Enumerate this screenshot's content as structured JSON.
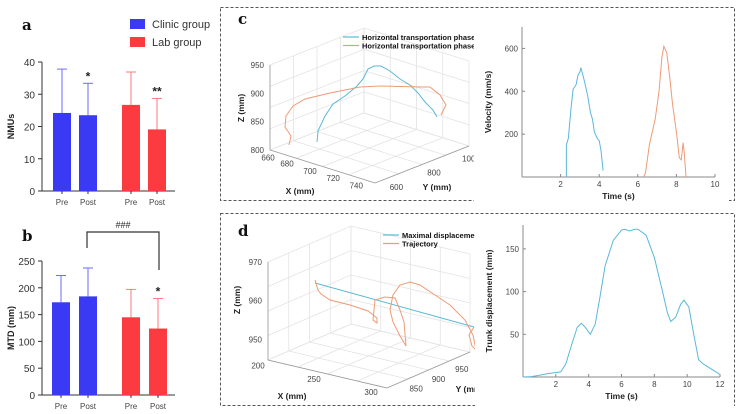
{
  "colors": {
    "clinic": "#3a3af5",
    "lab": "#fb3b3f",
    "cyan": "#5ab8d8",
    "orange": "#ef9a74"
  },
  "panels": {
    "a": "a",
    "b": "b",
    "c": "c",
    "d": "d"
  },
  "legend": {
    "clinic": "Clinic group",
    "lab": "Lab group"
  },
  "chart_data": [
    {
      "id": "a",
      "type": "bar",
      "ylabel": "NMUs",
      "ylim": [
        0,
        40
      ],
      "yticks": [
        "0",
        "10",
        "20",
        "30",
        "40"
      ],
      "categories": [
        "Pre",
        "Post",
        "Pre",
        "Post"
      ],
      "groups": [
        "Clinic group",
        "Clinic group",
        "Lab group",
        "Lab group"
      ],
      "values": [
        24.2,
        23.5,
        26.7,
        19.1
      ],
      "error_upper": [
        37.8,
        33.4,
        36.9,
        28.7
      ],
      "annotations": [
        "",
        "*",
        "",
        "**"
      ]
    },
    {
      "id": "b",
      "type": "bar",
      "ylabel": "MTD (mm)",
      "ylim": [
        0,
        250
      ],
      "yticks": [
        "0",
        "50",
        "100",
        "150",
        "200",
        "250"
      ],
      "categories": [
        "Pre",
        "Post",
        "Pre",
        "Post"
      ],
      "groups": [
        "Clinic group",
        "Clinic group",
        "Lab group",
        "Lab group"
      ],
      "values": [
        173,
        184,
        145,
        124
      ],
      "error_upper": [
        223,
        237,
        197,
        180
      ],
      "annotations": [
        "",
        "",
        "",
        "*"
      ],
      "bracket_label": "###"
    },
    {
      "id": "c",
      "type": "line",
      "plot3d": {
        "xlabel": "X (mm)",
        "ylabel": "Y (mm)",
        "zlabel": "Z (mm)",
        "xticks": [
          "660",
          "680",
          "700",
          "720",
          "740"
        ],
        "yticks": [
          "600",
          "800",
          "1000"
        ],
        "zticks": [
          "950",
          "900",
          "850",
          "800"
        ],
        "legend": [
          "Horizontal transportation phase I",
          "Horizontal transportation phase II"
        ]
      },
      "velocity": {
        "xlabel": "Time (s)",
        "ylabel": "Velocity (mm/s)",
        "xlim": [
          0,
          10
        ],
        "ylim": [
          0,
          700
        ],
        "xticks": [
          "2",
          "4",
          "6",
          "8",
          "10"
        ],
        "yticks": [
          "200",
          "400",
          "600"
        ],
        "series": [
          {
            "name": "Horizontal transportation phase I",
            "x": [
              2.3,
              2.3,
              2.4,
              2.55,
              2.65,
              2.8,
              2.9,
              3.0,
              3.05,
              3.2,
              3.4,
              3.55,
              3.65,
              3.75,
              3.9,
              4.0,
              4.1,
              4.2
            ],
            "y": [
              0,
              150,
              180,
              330,
              410,
              430,
              475,
              490,
              510,
              460,
              380,
              300,
              270,
              210,
              180,
              170,
              120,
              30
            ]
          },
          {
            "name": "Horizontal transportation phase II",
            "x": [
              6.3,
              6.4,
              6.6,
              6.75,
              6.9,
              7.1,
              7.25,
              7.35,
              7.5,
              7.65,
              7.8,
              8.0,
              8.15,
              8.25,
              8.35,
              8.4,
              8.45,
              8.5
            ],
            "y": [
              0,
              20,
              150,
              210,
              270,
              400,
              560,
              610,
              580,
              470,
              340,
              210,
              90,
              80,
              160,
              120,
              60,
              0
            ]
          }
        ]
      }
    },
    {
      "id": "d",
      "type": "line",
      "plot3d": {
        "xlabel": "X (mm)",
        "ylabel": "Y (mm)",
        "zlabel": "Z (mm)",
        "xticks": [
          "200",
          "250",
          "300"
        ],
        "yticks": [
          "850",
          "900",
          "950",
          "1000"
        ],
        "zticks": [
          "970",
          "960",
          "950"
        ],
        "legend": [
          "Maximal displacement",
          "Trajectory"
        ]
      },
      "displacement": {
        "xlabel": "Time (s)",
        "ylabel": "Trunk displacement (mm)",
        "xlim": [
          0,
          12
        ],
        "ylim": [
          0,
          178
        ],
        "xticks": [
          "2",
          "4",
          "6",
          "8",
          "10",
          "12"
        ],
        "yticks": [
          "50",
          "100",
          "150"
        ],
        "x": [
          0,
          0.5,
          1,
          1.5,
          1.9,
          2.3,
          2.6,
          3.0,
          3.3,
          3.55,
          3.8,
          4.1,
          4.4,
          4.7,
          5.0,
          5.5,
          6.0,
          6.2,
          6.5,
          6.8,
          7.0,
          7.5,
          8.0,
          8.5,
          8.8,
          9.0,
          9.3,
          9.6,
          9.8,
          10.1,
          10.4,
          10.7,
          11.0,
          11.5,
          12
        ],
        "y": [
          0,
          0.5,
          2,
          4,
          5,
          6,
          15,
          40,
          58,
          63,
          58,
          50,
          62,
          95,
          130,
          160,
          172,
          173,
          171,
          173,
          173,
          166,
          140,
          100,
          75,
          65,
          70,
          85,
          90,
          82,
          50,
          20,
          15,
          9,
          3
        ]
      }
    }
  ]
}
